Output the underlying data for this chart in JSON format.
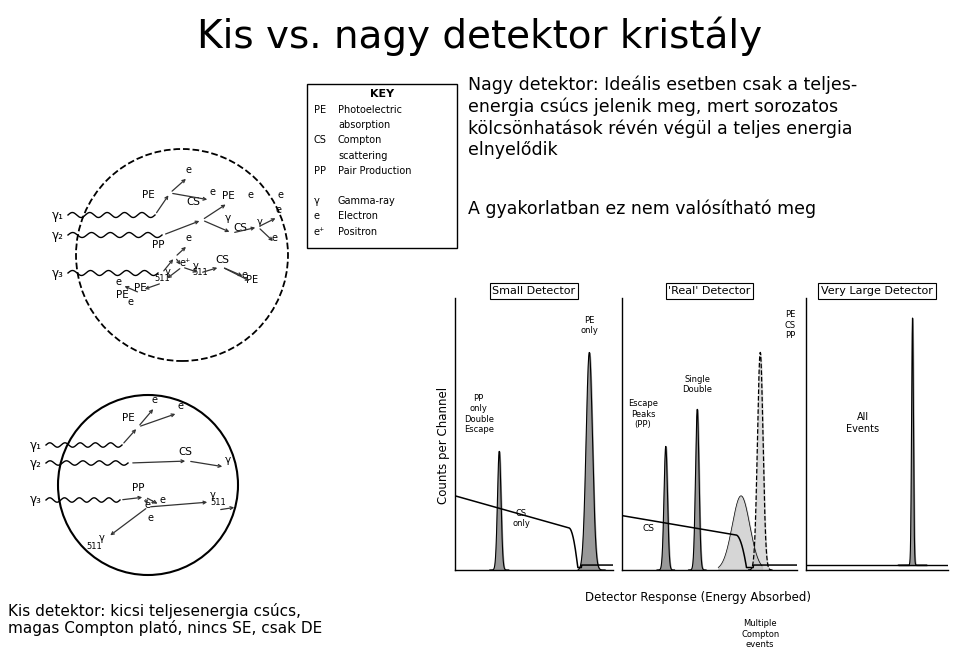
{
  "title": "Kis vs. nagy detektor kristály",
  "title_fontsize": 28,
  "bg_color": "#ffffff",
  "text_color": "#000000",
  "upper_right_lines": [
    "Nagy detektor: Ideális esetben csak a teljes-",
    "energia csúcs jelenik meg, mert sorozatos",
    "kölcsönhatások révén végül a teljes energia",
    "elnyelődik"
  ],
  "upper_right_text2": "A gyakorlatban ez nem valósítható meg",
  "bottom_left_text": [
    "Kis detektor: kicsi teljesenergia csúcs,",
    "magas Compton plató, nincs SE, csak DE"
  ],
  "spectrum_titles": [
    "Small Detector",
    "'Real' Detector",
    "Very Large Detector"
  ],
  "x_axis_label": "Detector Response (Energy Absorbed)",
  "y_axis_label": "Counts per Channel"
}
